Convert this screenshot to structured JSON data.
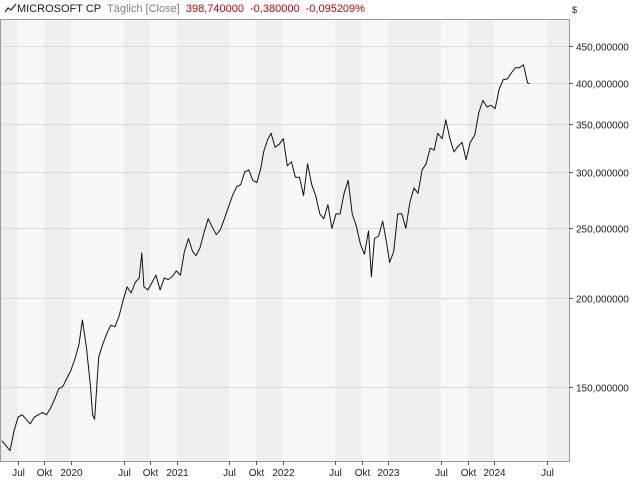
{
  "header": {
    "instrument": "MICROSOFT CP",
    "mode": "Täglich [Close]",
    "last": "398,740000",
    "change_abs": "-0,380000",
    "change_pct": "-0,095209%",
    "currency": "$",
    "icon": "line-chart-icon"
  },
  "colors": {
    "line": "#111111",
    "change": "#d00000",
    "band_dark": "#efefef",
    "band_light": "#f8f8f8",
    "grid": "#dcdcdc"
  },
  "chart_data": {
    "type": "line",
    "scale": "log",
    "ylim": [
      118,
      490
    ],
    "yticks": [
      150,
      200,
      250,
      300,
      350,
      400,
      450
    ],
    "ytick_labels": [
      "150,000000",
      "200,000000",
      "250,000000",
      "300,000000",
      "350,000000",
      "400,000000",
      "450,000000"
    ],
    "xlim": [
      "2019-05-05",
      "2024-09-15"
    ],
    "xticks": [
      {
        "date": "2019-07-01",
        "label": "Jul"
      },
      {
        "date": "2019-10-01",
        "label": "Okt"
      },
      {
        "date": "2020-01-01",
        "label": "2020"
      },
      {
        "date": "2020-07-01",
        "label": "Jul"
      },
      {
        "date": "2020-10-01",
        "label": "Okt"
      },
      {
        "date": "2021-01-01",
        "label": "2021"
      },
      {
        "date": "2021-07-01",
        "label": "Jul"
      },
      {
        "date": "2021-10-01",
        "label": "Okt"
      },
      {
        "date": "2022-01-01",
        "label": "2022"
      },
      {
        "date": "2022-07-01",
        "label": "Jul"
      },
      {
        "date": "2022-10-01",
        "label": "Okt"
      },
      {
        "date": "2023-01-01",
        "label": "2023"
      },
      {
        "date": "2023-07-01",
        "label": "Jul"
      },
      {
        "date": "2023-10-01",
        "label": "Okt"
      },
      {
        "date": "2024-01-01",
        "label": "2024"
      },
      {
        "date": "2024-07-01",
        "label": "Jul"
      }
    ],
    "grid": true,
    "legend": "none",
    "series": [
      {
        "points": [
          [
            "2019-05-08",
            126
          ],
          [
            "2019-05-22",
            124
          ],
          [
            "2019-06-05",
            122
          ],
          [
            "2019-06-19",
            130
          ],
          [
            "2019-07-03",
            136
          ],
          [
            "2019-07-17",
            137
          ],
          [
            "2019-07-31",
            135
          ],
          [
            "2019-08-14",
            133
          ],
          [
            "2019-08-28",
            136
          ],
          [
            "2019-09-11",
            137
          ],
          [
            "2019-09-25",
            138
          ],
          [
            "2019-10-09",
            137
          ],
          [
            "2019-10-23",
            140
          ],
          [
            "2019-11-06",
            144
          ],
          [
            "2019-11-20",
            149
          ],
          [
            "2019-12-04",
            150
          ],
          [
            "2019-12-18",
            154
          ],
          [
            "2020-01-01",
            158
          ],
          [
            "2020-01-15",
            164
          ],
          [
            "2020-01-29",
            172
          ],
          [
            "2020-02-10",
            186
          ],
          [
            "2020-02-24",
            170
          ],
          [
            "2020-03-09",
            150
          ],
          [
            "2020-03-16",
            137
          ],
          [
            "2020-03-23",
            135
          ],
          [
            "2020-04-06",
            165
          ],
          [
            "2020-04-20",
            172
          ],
          [
            "2020-05-04",
            178
          ],
          [
            "2020-05-18",
            183
          ],
          [
            "2020-06-01",
            182
          ],
          [
            "2020-06-15",
            188
          ],
          [
            "2020-06-29",
            198
          ],
          [
            "2020-07-13",
            207
          ],
          [
            "2020-07-27",
            203
          ],
          [
            "2020-08-10",
            210
          ],
          [
            "2020-08-24",
            213
          ],
          [
            "2020-09-02",
            231
          ],
          [
            "2020-09-09",
            207
          ],
          [
            "2020-09-23",
            205
          ],
          [
            "2020-10-07",
            210
          ],
          [
            "2020-10-21",
            215
          ],
          [
            "2020-11-04",
            205
          ],
          [
            "2020-11-18",
            213
          ],
          [
            "2020-12-02",
            212
          ],
          [
            "2020-12-16",
            214
          ],
          [
            "2020-12-30",
            218
          ],
          [
            "2021-01-13",
            215
          ],
          [
            "2021-01-27",
            232
          ],
          [
            "2021-02-10",
            242
          ],
          [
            "2021-02-24",
            232
          ],
          [
            "2021-03-08",
            229
          ],
          [
            "2021-03-22",
            235
          ],
          [
            "2021-04-05",
            247
          ],
          [
            "2021-04-19",
            258
          ],
          [
            "2021-05-03",
            251
          ],
          [
            "2021-05-17",
            245
          ],
          [
            "2021-05-31",
            249
          ],
          [
            "2021-06-14",
            258
          ],
          [
            "2021-06-28",
            268
          ],
          [
            "2021-07-12",
            278
          ],
          [
            "2021-07-26",
            286
          ],
          [
            "2021-08-09",
            288
          ],
          [
            "2021-08-23",
            300
          ],
          [
            "2021-09-06",
            302
          ],
          [
            "2021-09-20",
            292
          ],
          [
            "2021-10-04",
            290
          ],
          [
            "2021-10-18",
            304
          ],
          [
            "2021-10-27",
            320
          ],
          [
            "2021-11-10",
            333
          ],
          [
            "2021-11-22",
            340
          ],
          [
            "2021-12-06",
            325
          ],
          [
            "2021-12-20",
            328
          ],
          [
            "2022-01-03",
            334
          ],
          [
            "2022-01-17",
            306
          ],
          [
            "2022-01-31",
            310
          ],
          [
            "2022-02-14",
            295
          ],
          [
            "2022-02-28",
            295
          ],
          [
            "2022-03-14",
            278
          ],
          [
            "2022-03-28",
            308
          ],
          [
            "2022-04-11",
            288
          ],
          [
            "2022-04-25",
            278
          ],
          [
            "2022-05-09",
            262
          ],
          [
            "2022-05-23",
            258
          ],
          [
            "2022-06-06",
            270
          ],
          [
            "2022-06-20",
            250
          ],
          [
            "2022-07-04",
            262
          ],
          [
            "2022-07-18",
            262
          ],
          [
            "2022-08-01",
            280
          ],
          [
            "2022-08-15",
            292
          ],
          [
            "2022-08-29",
            262
          ],
          [
            "2022-09-12",
            252
          ],
          [
            "2022-09-26",
            238
          ],
          [
            "2022-10-10",
            230
          ],
          [
            "2022-10-24",
            248
          ],
          [
            "2022-11-03",
            214
          ],
          [
            "2022-11-14",
            242
          ],
          [
            "2022-11-28",
            244
          ],
          [
            "2022-12-12",
            256
          ],
          [
            "2022-12-26",
            238
          ],
          [
            "2023-01-05",
            224
          ],
          [
            "2023-01-19",
            232
          ],
          [
            "2023-02-02",
            262
          ],
          [
            "2023-02-16",
            262
          ],
          [
            "2023-03-02",
            250
          ],
          [
            "2023-03-16",
            272
          ],
          [
            "2023-03-30",
            285
          ],
          [
            "2023-04-13",
            280
          ],
          [
            "2023-04-27",
            302
          ],
          [
            "2023-05-11",
            308
          ],
          [
            "2023-05-25",
            324
          ],
          [
            "2023-06-08",
            322
          ],
          [
            "2023-06-20",
            340
          ],
          [
            "2023-07-05",
            334
          ],
          [
            "2023-07-18",
            355
          ],
          [
            "2023-08-01",
            334
          ],
          [
            "2023-08-15",
            320
          ],
          [
            "2023-08-29",
            326
          ],
          [
            "2023-09-12",
            330
          ],
          [
            "2023-09-26",
            312
          ],
          [
            "2023-10-10",
            330
          ],
          [
            "2023-10-26",
            338
          ],
          [
            "2023-11-09",
            364
          ],
          [
            "2023-11-23",
            378
          ],
          [
            "2023-12-07",
            370
          ],
          [
            "2023-12-21",
            372
          ],
          [
            "2024-01-04",
            368
          ],
          [
            "2024-01-18",
            392
          ],
          [
            "2024-02-01",
            404
          ],
          [
            "2024-02-15",
            405
          ],
          [
            "2024-02-29",
            413
          ],
          [
            "2024-03-14",
            420
          ],
          [
            "2024-03-28",
            420
          ],
          [
            "2024-04-11",
            424
          ],
          [
            "2024-04-25",
            400
          ],
          [
            "2024-05-02",
            398.74
          ]
        ]
      }
    ]
  }
}
